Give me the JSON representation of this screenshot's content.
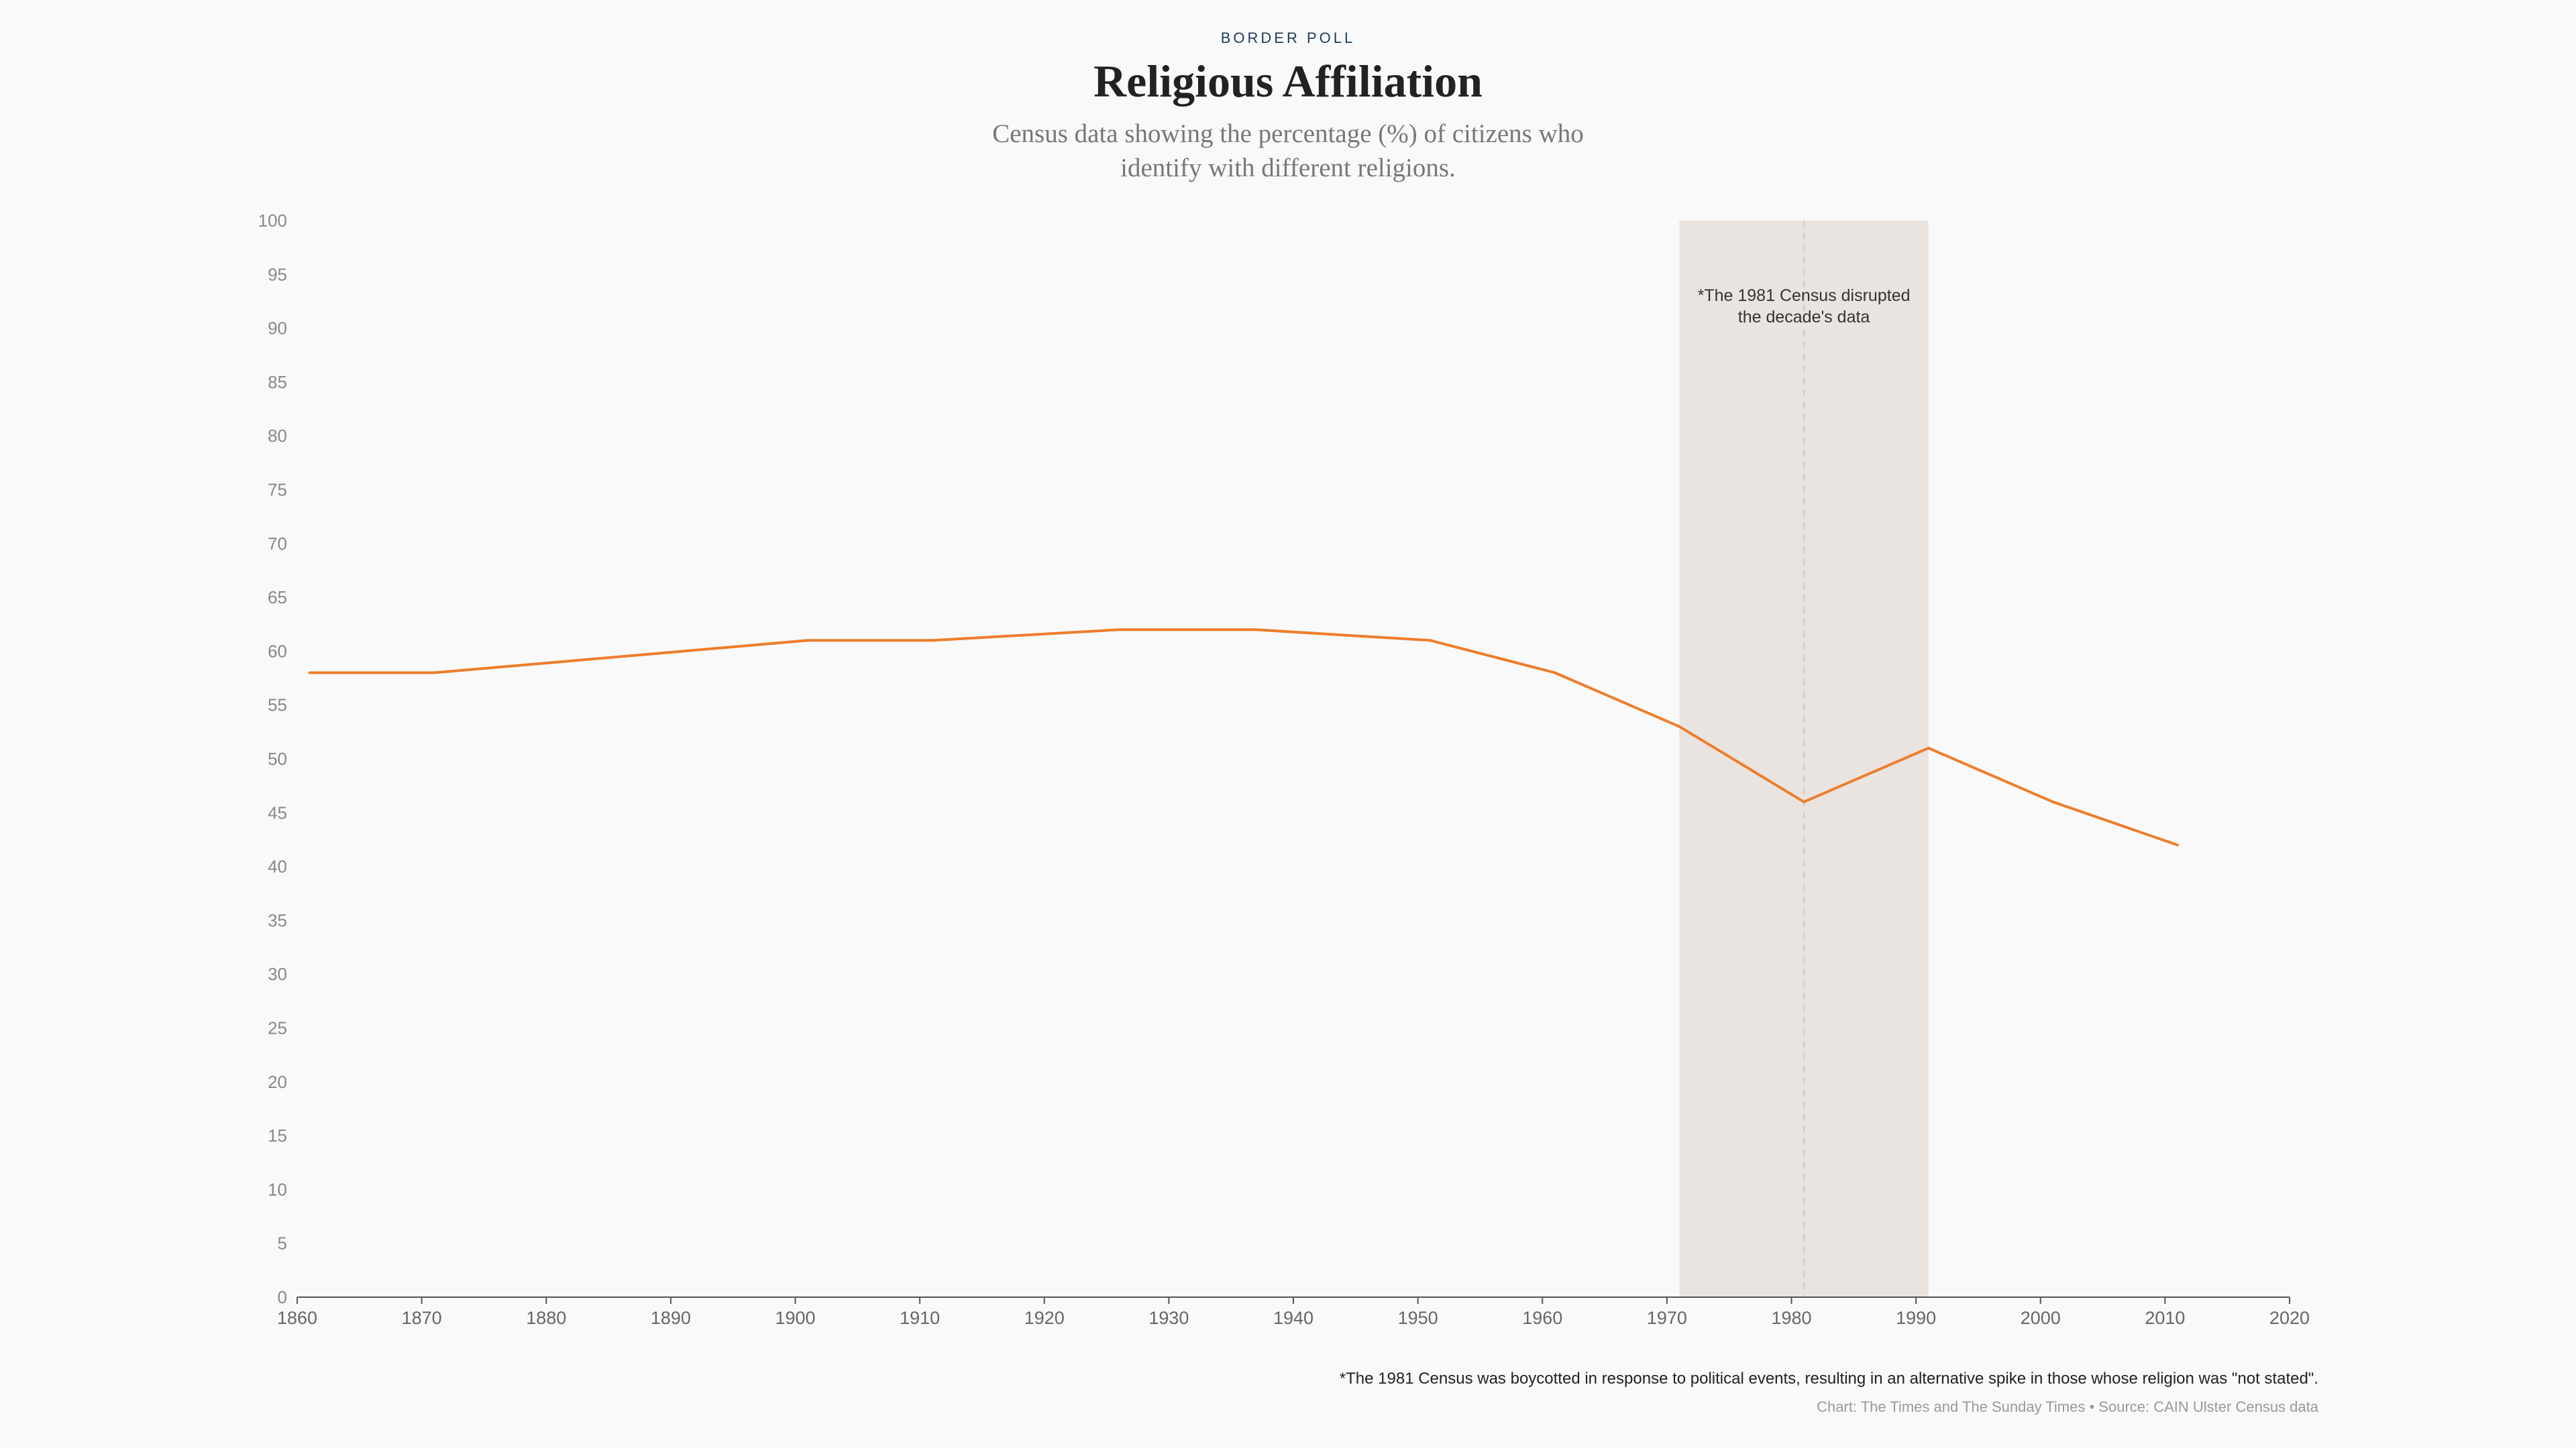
{
  "header": {
    "kicker": "BORDER POLL",
    "title": "Religious Affiliation",
    "subtitle": "Census data showing the percentage (%) of citizens who identify with different religions."
  },
  "annotation": {
    "line1": "*The 1981 Census disrupted",
    "line2": "the decade's data"
  },
  "footer": {
    "footnote": "*The 1981 Census was boycotted in response to political events, resulting in an alternative spike in those whose religion was \"not stated\".",
    "source": "Chart: The Times and The Sunday Times • Source: CAIN Ulster Census data"
  },
  "colors": {
    "line": "#ee7d2b",
    "highlight_band": "#e9e4df",
    "axis": "#555555",
    "tick_label": "#888888",
    "background": "#f9f9f9"
  },
  "chart_data": {
    "type": "line",
    "title": "Religious Affiliation",
    "subtitle": "Census data showing the percentage (%) of citizens who identify with different religions.",
    "x": [
      1861,
      1871,
      1881,
      1891,
      1901,
      1911,
      1926,
      1937,
      1951,
      1961,
      1971,
      1981,
      1991,
      2001,
      2011
    ],
    "series": [
      {
        "values": [
          58,
          58,
          59,
          60,
          61,
          61,
          62,
          62,
          61,
          58,
          53,
          46,
          51,
          46,
          42
        ]
      }
    ],
    "xlim": [
      1860,
      2020
    ],
    "ylim": [
      0,
      100
    ],
    "xticks": [
      1860,
      1870,
      1880,
      1890,
      1900,
      1910,
      1920,
      1930,
      1940,
      1950,
      1960,
      1970,
      1980,
      1990,
      2000,
      2010,
      2020
    ],
    "yticks": [
      0,
      5,
      10,
      15,
      20,
      25,
      30,
      35,
      40,
      45,
      50,
      55,
      60,
      65,
      70,
      75,
      80,
      85,
      90,
      95,
      100
    ],
    "highlight_range": [
      1971,
      1991
    ],
    "marker_line": 1981,
    "grid": false
  }
}
